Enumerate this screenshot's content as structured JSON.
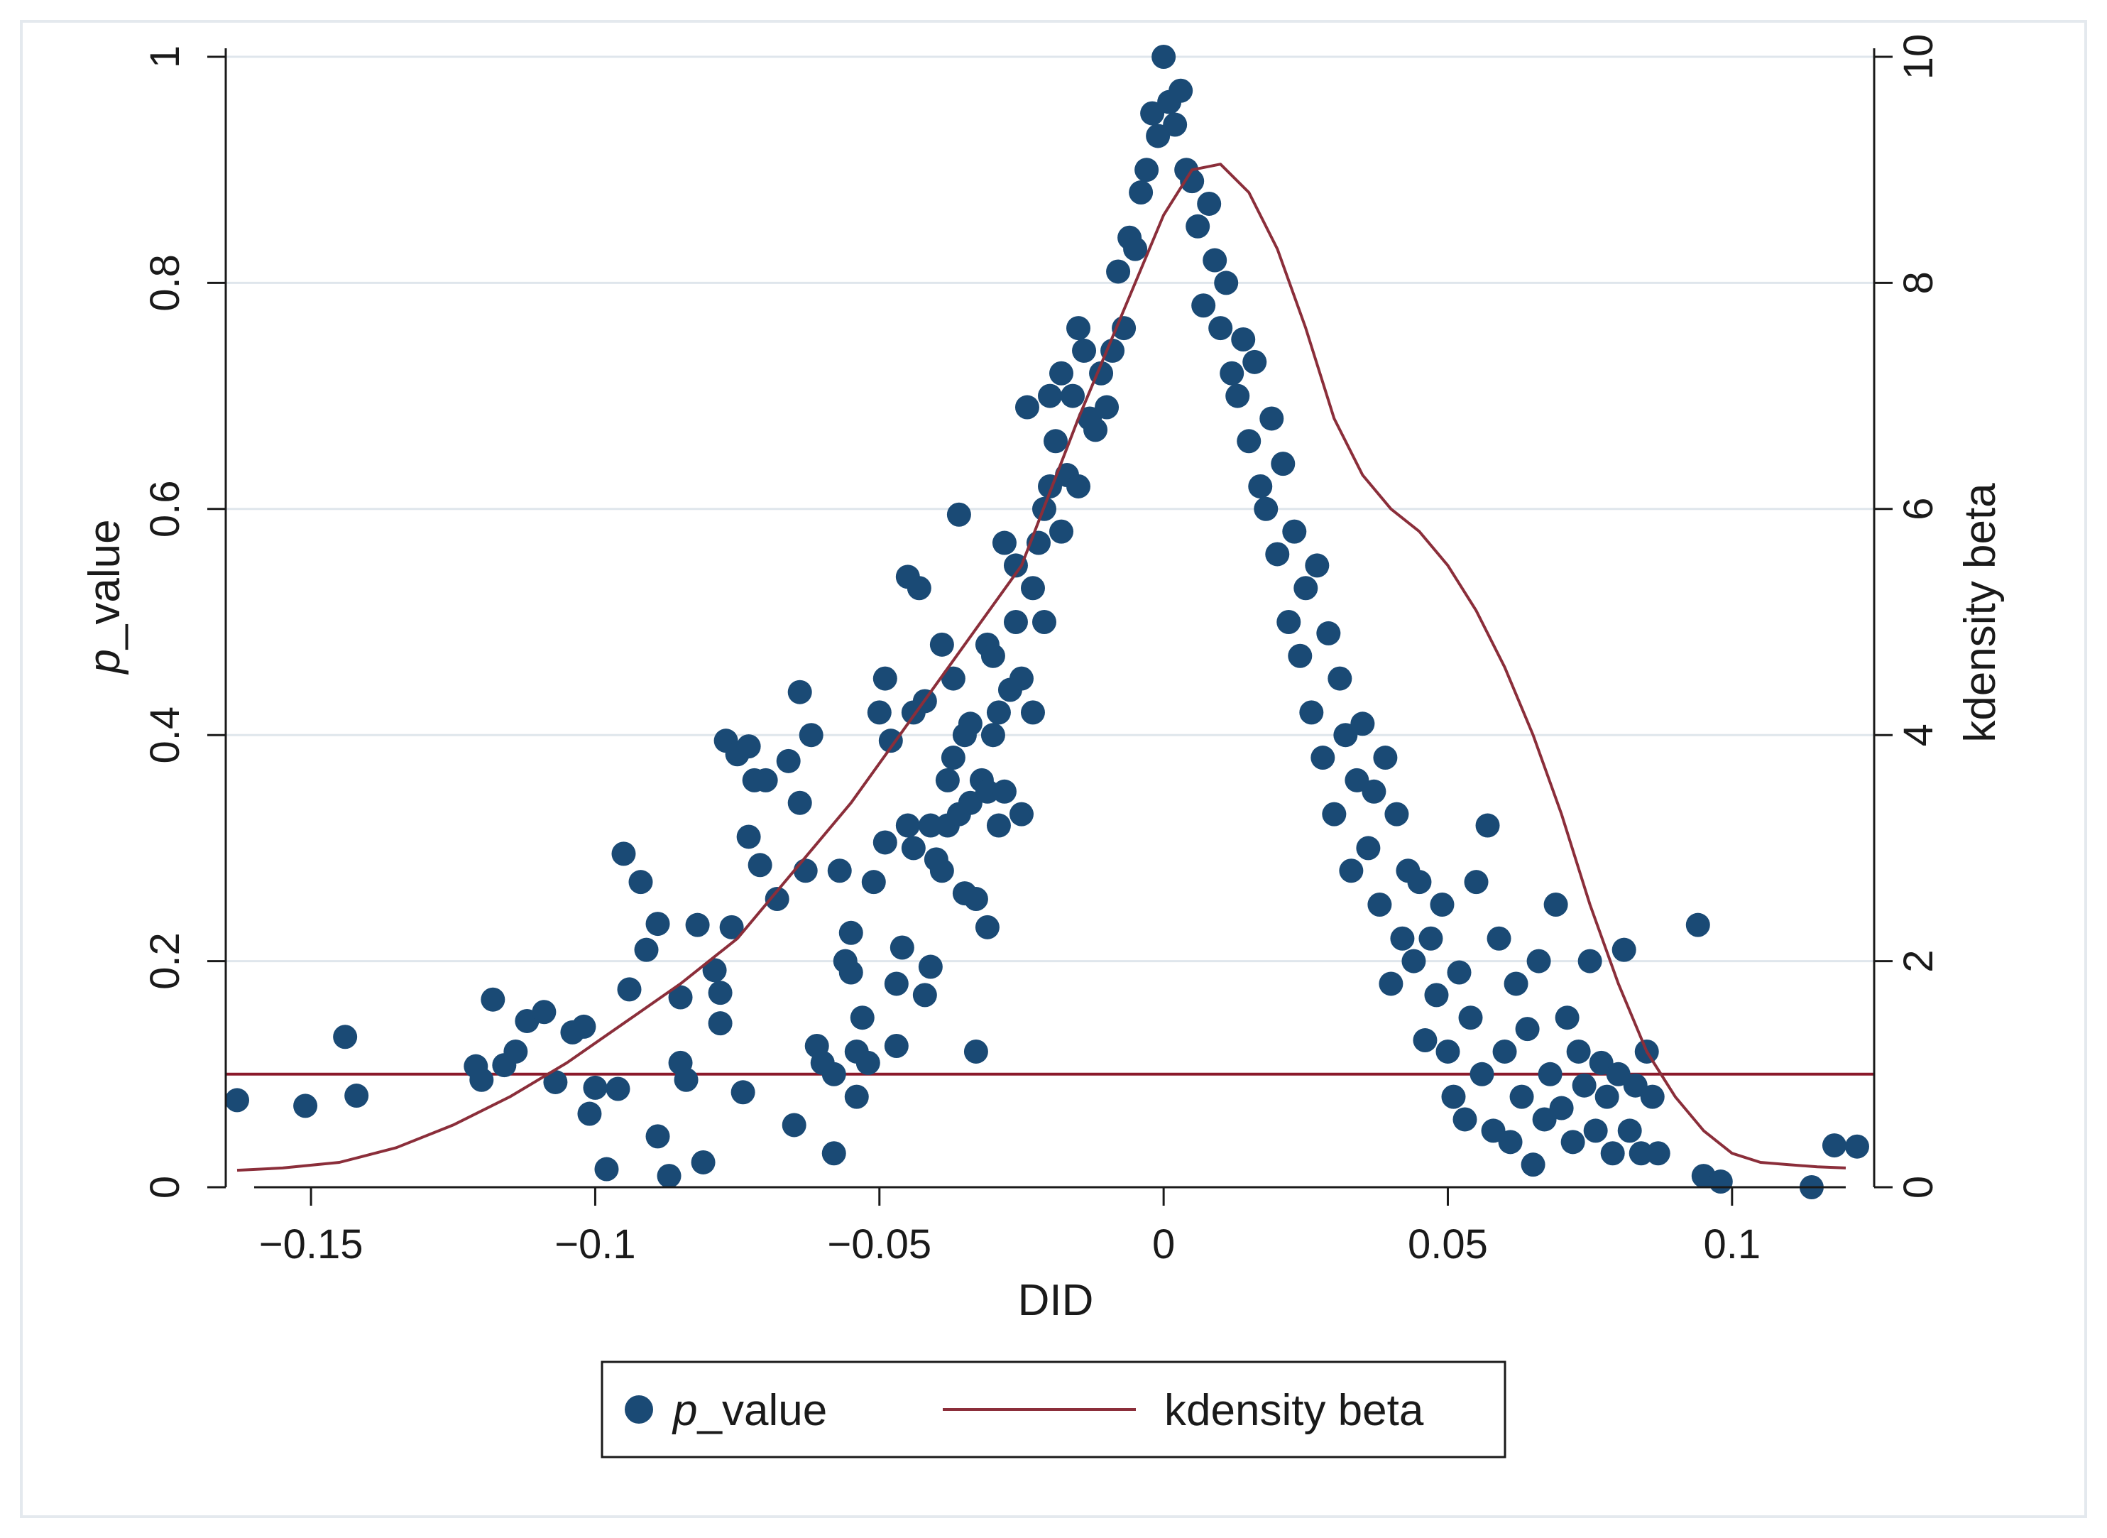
{
  "chart_data": {
    "type": "scatter",
    "title": "",
    "xlabel": "DID",
    "ylabel_left_prefix": "p",
    "ylabel_left_suffix": "_value",
    "ylabel_right": "kdensity beta",
    "xlim": [
      -0.165,
      0.125
    ],
    "ylim_left": [
      0,
      1
    ],
    "ylim_right": [
      0,
      10
    ],
    "x_ticks": [
      -0.15,
      -0.1,
      -0.05,
      0,
      0.05,
      0.1
    ],
    "x_tick_labels": [
      "−0.15",
      "−0.1",
      "−0.05",
      "0",
      "0.05",
      "0.1"
    ],
    "y_left_ticks": [
      0,
      0.2,
      0.4,
      0.6,
      0.8,
      1
    ],
    "y_left_tick_labels": [
      "0",
      "0.2",
      "0.4",
      "0.6",
      "0.8",
      "1"
    ],
    "y_right_ticks": [
      0,
      2,
      4,
      6,
      8,
      10
    ],
    "y_right_tick_labels": [
      "0",
      "2",
      "4",
      "6",
      "8",
      "10"
    ],
    "grid": true,
    "reference_line": {
      "axis": "left",
      "value": 0.1,
      "color": "#8b1a2b"
    },
    "legend": {
      "placement": "bottom",
      "entries": [
        {
          "marker": "dot",
          "label_prefix": "p",
          "label_suffix": "_value"
        },
        {
          "marker": "line",
          "label": "kdensity beta"
        }
      ]
    },
    "colors": {
      "points": "#1a4a75",
      "density": "#8b2e3a",
      "grid": "#dfe6ec",
      "axis": "#1a1a1a",
      "frame": "#e4e9ee"
    },
    "series": [
      {
        "name": "p_value",
        "type": "scatter",
        "axis": "left",
        "points": [
          [
            -0.163,
            0.077
          ],
          [
            -0.151,
            0.072
          ],
          [
            -0.144,
            0.133
          ],
          [
            -0.142,
            0.081
          ],
          [
            -0.121,
            0.107
          ],
          [
            -0.12,
            0.095
          ],
          [
            -0.118,
            0.166
          ],
          [
            -0.116,
            0.108
          ],
          [
            -0.114,
            0.12
          ],
          [
            -0.112,
            0.147
          ],
          [
            -0.109,
            0.155
          ],
          [
            -0.107,
            0.093
          ],
          [
            -0.104,
            0.137
          ],
          [
            -0.102,
            0.142
          ],
          [
            -0.101,
            0.065
          ],
          [
            -0.1,
            0.088
          ],
          [
            -0.098,
            0.016
          ],
          [
            -0.096,
            0.087
          ],
          [
            -0.095,
            0.295
          ],
          [
            -0.094,
            0.175
          ],
          [
            -0.092,
            0.27
          ],
          [
            -0.091,
            0.21
          ],
          [
            -0.089,
            0.045
          ],
          [
            -0.089,
            0.233
          ],
          [
            -0.087,
            0.01
          ],
          [
            -0.085,
            0.168
          ],
          [
            -0.085,
            0.11
          ],
          [
            -0.084,
            0.095
          ],
          [
            -0.082,
            0.232
          ],
          [
            -0.081,
            0.022
          ],
          [
            -0.079,
            0.192
          ],
          [
            -0.078,
            0.172
          ],
          [
            -0.078,
            0.145
          ],
          [
            -0.077,
            0.395
          ],
          [
            -0.076,
            0.23
          ],
          [
            -0.075,
            0.383
          ],
          [
            -0.074,
            0.084
          ],
          [
            -0.073,
            0.31
          ],
          [
            -0.073,
            0.39
          ],
          [
            -0.072,
            0.36
          ],
          [
            -0.071,
            0.285
          ],
          [
            -0.07,
            0.36
          ],
          [
            -0.068,
            0.255
          ],
          [
            -0.066,
            0.377
          ],
          [
            -0.065,
            0.055
          ],
          [
            -0.064,
            0.438
          ],
          [
            -0.064,
            0.34
          ],
          [
            -0.063,
            0.28
          ],
          [
            -0.062,
            0.4
          ],
          [
            -0.061,
            0.125
          ],
          [
            -0.06,
            0.11
          ],
          [
            -0.058,
            0.1
          ],
          [
            -0.058,
            0.03
          ],
          [
            -0.057,
            0.28
          ],
          [
            -0.056,
            0.2
          ],
          [
            -0.055,
            0.19
          ],
          [
            -0.055,
            0.225
          ],
          [
            -0.054,
            0.08
          ],
          [
            -0.054,
            0.12
          ],
          [
            -0.053,
            0.15
          ],
          [
            -0.052,
            0.11
          ],
          [
            -0.051,
            0.27
          ],
          [
            -0.05,
            0.42
          ],
          [
            -0.049,
            0.305
          ],
          [
            -0.049,
            0.45
          ],
          [
            -0.048,
            0.395
          ],
          [
            -0.047,
            0.18
          ],
          [
            -0.047,
            0.125
          ],
          [
            -0.046,
            0.212
          ],
          [
            -0.045,
            0.32
          ],
          [
            -0.045,
            0.54
          ],
          [
            -0.044,
            0.42
          ],
          [
            -0.044,
            0.3
          ],
          [
            -0.043,
            0.53
          ],
          [
            -0.042,
            0.17
          ],
          [
            -0.042,
            0.43
          ],
          [
            -0.041,
            0.195
          ],
          [
            -0.041,
            0.32
          ],
          [
            -0.04,
            0.29
          ],
          [
            -0.039,
            0.48
          ],
          [
            -0.039,
            0.28
          ],
          [
            -0.038,
            0.36
          ],
          [
            -0.038,
            0.32
          ],
          [
            -0.037,
            0.45
          ],
          [
            -0.037,
            0.38
          ],
          [
            -0.036,
            0.33
          ],
          [
            -0.036,
            0.595
          ],
          [
            -0.035,
            0.26
          ],
          [
            -0.035,
            0.4
          ],
          [
            -0.034,
            0.41
          ],
          [
            -0.034,
            0.34
          ],
          [
            -0.033,
            0.12
          ],
          [
            -0.033,
            0.255
          ],
          [
            -0.032,
            0.36
          ],
          [
            -0.031,
            0.48
          ],
          [
            -0.031,
            0.35
          ],
          [
            -0.031,
            0.23
          ],
          [
            -0.03,
            0.47
          ],
          [
            -0.03,
            0.4
          ],
          [
            -0.029,
            0.42
          ],
          [
            -0.029,
            0.32
          ],
          [
            -0.028,
            0.57
          ],
          [
            -0.028,
            0.35
          ],
          [
            -0.027,
            0.44
          ],
          [
            -0.026,
            0.55
          ],
          [
            -0.026,
            0.5
          ],
          [
            -0.025,
            0.45
          ],
          [
            -0.025,
            0.33
          ],
          [
            -0.024,
            0.69
          ],
          [
            -0.023,
            0.53
          ],
          [
            -0.023,
            0.42
          ],
          [
            -0.022,
            0.57
          ],
          [
            -0.021,
            0.5
          ],
          [
            -0.021,
            0.6
          ],
          [
            -0.02,
            0.7
          ],
          [
            -0.02,
            0.62
          ],
          [
            -0.019,
            0.66
          ],
          [
            -0.018,
            0.72
          ],
          [
            -0.018,
            0.58
          ],
          [
            -0.017,
            0.63
          ],
          [
            -0.016,
            0.7
          ],
          [
            -0.015,
            0.76
          ],
          [
            -0.015,
            0.62
          ],
          [
            -0.014,
            0.74
          ],
          [
            -0.013,
            0.68
          ],
          [
            -0.012,
            0.67
          ],
          [
            -0.011,
            0.72
          ],
          [
            -0.01,
            0.69
          ],
          [
            -0.009,
            0.74
          ],
          [
            -0.008,
            0.81
          ],
          [
            -0.007,
            0.76
          ],
          [
            -0.006,
            0.84
          ],
          [
            -0.005,
            0.83
          ],
          [
            -0.004,
            0.88
          ],
          [
            -0.003,
            0.9
          ],
          [
            -0.002,
            0.95
          ],
          [
            -0.001,
            0.93
          ],
          [
            0,
            1
          ],
          [
            0.001,
            0.96
          ],
          [
            0.002,
            0.94
          ],
          [
            0.003,
            0.97
          ],
          [
            0.004,
            0.9
          ],
          [
            0.005,
            0.89
          ],
          [
            0.006,
            0.85
          ],
          [
            0.007,
            0.78
          ],
          [
            0.008,
            0.87
          ],
          [
            0.009,
            0.82
          ],
          [
            0.01,
            0.76
          ],
          [
            0.011,
            0.8
          ],
          [
            0.012,
            0.72
          ],
          [
            0.013,
            0.7
          ],
          [
            0.014,
            0.75
          ],
          [
            0.015,
            0.66
          ],
          [
            0.016,
            0.73
          ],
          [
            0.017,
            0.62
          ],
          [
            0.018,
            0.6
          ],
          [
            0.019,
            0.68
          ],
          [
            0.02,
            0.56
          ],
          [
            0.021,
            0.64
          ],
          [
            0.022,
            0.5
          ],
          [
            0.023,
            0.58
          ],
          [
            0.024,
            0.47
          ],
          [
            0.025,
            0.53
          ],
          [
            0.026,
            0.42
          ],
          [
            0.027,
            0.55
          ],
          [
            0.028,
            0.38
          ],
          [
            0.029,
            0.49
          ],
          [
            0.03,
            0.33
          ],
          [
            0.031,
            0.45
          ],
          [
            0.032,
            0.4
          ],
          [
            0.033,
            0.28
          ],
          [
            0.034,
            0.36
          ],
          [
            0.035,
            0.41
          ],
          [
            0.036,
            0.3
          ],
          [
            0.037,
            0.35
          ],
          [
            0.038,
            0.25
          ],
          [
            0.039,
            0.38
          ],
          [
            0.04,
            0.18
          ],
          [
            0.041,
            0.33
          ],
          [
            0.042,
            0.22
          ],
          [
            0.043,
            0.28
          ],
          [
            0.044,
            0.2
          ],
          [
            0.045,
            0.27
          ],
          [
            0.046,
            0.13
          ],
          [
            0.047,
            0.22
          ],
          [
            0.048,
            0.17
          ],
          [
            0.049,
            0.25
          ],
          [
            0.05,
            0.12
          ],
          [
            0.051,
            0.08
          ],
          [
            0.052,
            0.19
          ],
          [
            0.053,
            0.06
          ],
          [
            0.054,
            0.15
          ],
          [
            0.055,
            0.27
          ],
          [
            0.056,
            0.1
          ],
          [
            0.057,
            0.32
          ],
          [
            0.058,
            0.05
          ],
          [
            0.059,
            0.22
          ],
          [
            0.06,
            0.12
          ],
          [
            0.061,
            0.04
          ],
          [
            0.062,
            0.18
          ],
          [
            0.063,
            0.08
          ],
          [
            0.064,
            0.14
          ],
          [
            0.065,
            0.02
          ],
          [
            0.066,
            0.2
          ],
          [
            0.067,
            0.06
          ],
          [
            0.068,
            0.1
          ],
          [
            0.069,
            0.25
          ],
          [
            0.07,
            0.07
          ],
          [
            0.071,
            0.15
          ],
          [
            0.072,
            0.04
          ],
          [
            0.073,
            0.12
          ],
          [
            0.074,
            0.09
          ],
          [
            0.075,
            0.2
          ],
          [
            0.076,
            0.05
          ],
          [
            0.077,
            0.11
          ],
          [
            0.078,
            0.08
          ],
          [
            0.079,
            0.03
          ],
          [
            0.08,
            0.1
          ],
          [
            0.081,
            0.21
          ],
          [
            0.082,
            0.05
          ],
          [
            0.083,
            0.09
          ],
          [
            0.084,
            0.03
          ],
          [
            0.085,
            0.12
          ],
          [
            0.086,
            0.08
          ],
          [
            0.087,
            0.03
          ],
          [
            0.094,
            0.232
          ],
          [
            0.095,
            0.01
          ],
          [
            0.098,
            0.005
          ],
          [
            0.114,
            0.0
          ],
          [
            0.118,
            0.037
          ],
          [
            0.122,
            0.036
          ]
        ]
      },
      {
        "name": "kdensity beta",
        "type": "line",
        "axis": "right",
        "points": [
          [
            -0.163,
            0.15
          ],
          [
            -0.155,
            0.17
          ],
          [
            -0.145,
            0.22
          ],
          [
            -0.135,
            0.35
          ],
          [
            -0.125,
            0.55
          ],
          [
            -0.115,
            0.8
          ],
          [
            -0.105,
            1.1
          ],
          [
            -0.095,
            1.45
          ],
          [
            -0.085,
            1.8
          ],
          [
            -0.075,
            2.2
          ],
          [
            -0.065,
            2.8
          ],
          [
            -0.055,
            3.4
          ],
          [
            -0.045,
            4.1
          ],
          [
            -0.035,
            4.8
          ],
          [
            -0.025,
            5.5
          ],
          [
            -0.015,
            6.8
          ],
          [
            -0.005,
            8.0
          ],
          [
            0.0,
            8.6
          ],
          [
            0.005,
            9.0
          ],
          [
            0.01,
            9.05
          ],
          [
            0.015,
            8.8
          ],
          [
            0.02,
            8.3
          ],
          [
            0.025,
            7.6
          ],
          [
            0.03,
            6.8
          ],
          [
            0.035,
            6.3
          ],
          [
            0.04,
            6.0
          ],
          [
            0.045,
            5.8
          ],
          [
            0.05,
            5.5
          ],
          [
            0.055,
            5.1
          ],
          [
            0.06,
            4.6
          ],
          [
            0.065,
            4.0
          ],
          [
            0.07,
            3.3
          ],
          [
            0.075,
            2.5
          ],
          [
            0.08,
            1.8
          ],
          [
            0.085,
            1.2
          ],
          [
            0.09,
            0.8
          ],
          [
            0.095,
            0.5
          ],
          [
            0.1,
            0.3
          ],
          [
            0.105,
            0.22
          ],
          [
            0.11,
            0.2
          ],
          [
            0.115,
            0.18
          ],
          [
            0.12,
            0.17
          ]
        ]
      }
    ]
  }
}
